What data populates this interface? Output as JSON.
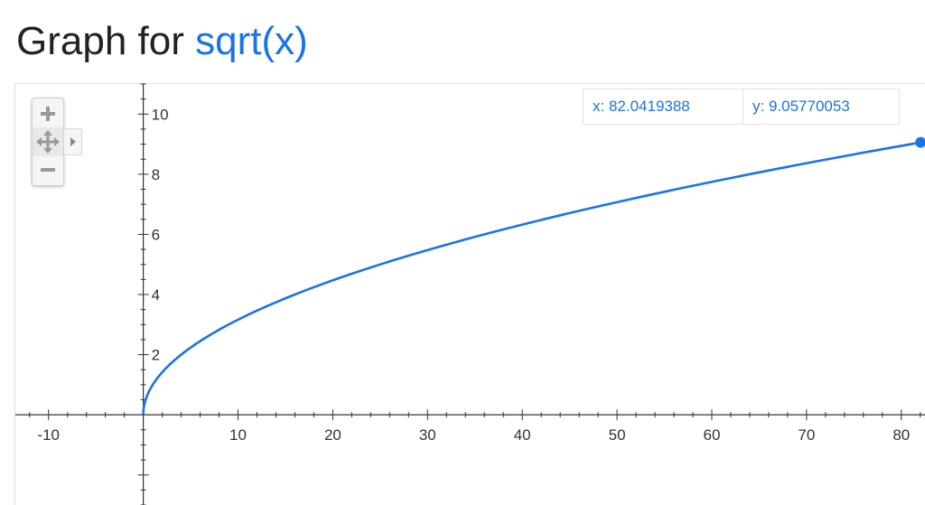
{
  "title": {
    "prefix": "Graph for ",
    "function": "sqrt(x)"
  },
  "coordinates": {
    "x_text": "x: 82.0419388",
    "y_text": "y: 9.05770053"
  },
  "controls": {
    "zoom_in_icon": "plus-icon",
    "pan_icon": "move-arrows-icon",
    "zoom_out_icon": "minus-icon",
    "expand_icon": "triangle-right-icon"
  },
  "colors": {
    "curve": "#1a73e8",
    "axis": "#333333",
    "text_dark": "#222222"
  },
  "chart_data": {
    "type": "line",
    "function": "sqrt(x)",
    "xlim": [
      -13.5,
      82.5
    ],
    "ylim": [
      -3.0,
      11.0
    ],
    "x_ticks": [
      -10,
      10,
      20,
      30,
      40,
      50,
      60,
      70,
      80
    ],
    "y_ticks": [
      2,
      4,
      6,
      8,
      10
    ],
    "series": [
      {
        "x": [
          0,
          0.25,
          0.5,
          1,
          2,
          3,
          4,
          6,
          8,
          10,
          15,
          20,
          25,
          30,
          35,
          40,
          45,
          50,
          55,
          60,
          65,
          70,
          75,
          80,
          82.0419388
        ],
        "y": [
          0,
          0.5,
          0.707,
          1,
          1.414,
          1.732,
          2,
          2.449,
          2.828,
          3.162,
          3.873,
          4.472,
          5,
          5.477,
          5.916,
          6.325,
          6.708,
          7.071,
          7.416,
          7.746,
          8.062,
          8.367,
          8.66,
          8.944,
          9.0577005
        ]
      }
    ],
    "highlight_point": {
      "x": 82.0419388,
      "y": 9.05770053
    },
    "grid": false
  }
}
